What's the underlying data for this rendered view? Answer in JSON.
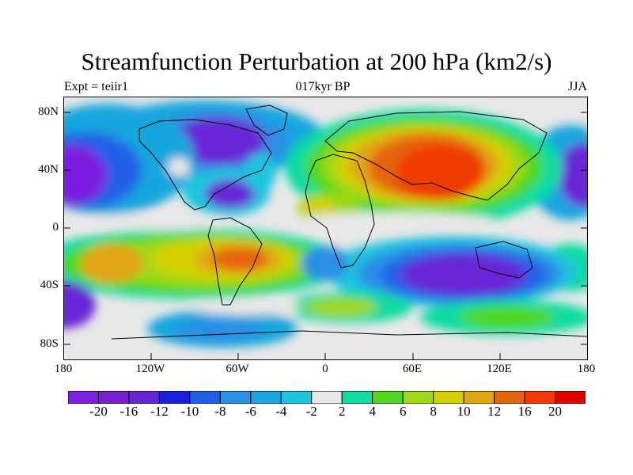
{
  "title": "Streamfunction Perturbation at 200 hPa (km2/s)",
  "left_label": "Expt = teiir1",
  "center_label": "017kyr BP",
  "right_label": "JJA",
  "map": {
    "type": "filled-contour world map",
    "projection": "cylindrical equidistant",
    "lon_range": [
      -180,
      180
    ],
    "lat_range": [
      -90,
      90
    ],
    "x_ticks": [
      "180",
      "120W",
      "60W",
      "0",
      "60E",
      "120E",
      "180"
    ],
    "y_ticks": [
      "80N",
      "40N",
      "0",
      "40S",
      "80S"
    ],
    "neutral_color": "#e8e8e8"
  },
  "colorbar": {
    "colors": [
      "#7b1fe0",
      "#7a1fcf",
      "#6726d6",
      "#1a1fdd",
      "#2060e8",
      "#2a8fe6",
      "#19a6de",
      "#1cc4de",
      "#e8e8e8",
      "#10dca1",
      "#4fd81d",
      "#9ed818",
      "#d4d000",
      "#e2a612",
      "#e6640c",
      "#f03a00",
      "#e00000"
    ],
    "labels": [
      "-20",
      "-16",
      "-12",
      "-10",
      "-8",
      "-6",
      "-4",
      "-2",
      "2",
      "4",
      "6",
      "8",
      "10",
      "12",
      "16",
      "20"
    ]
  }
}
